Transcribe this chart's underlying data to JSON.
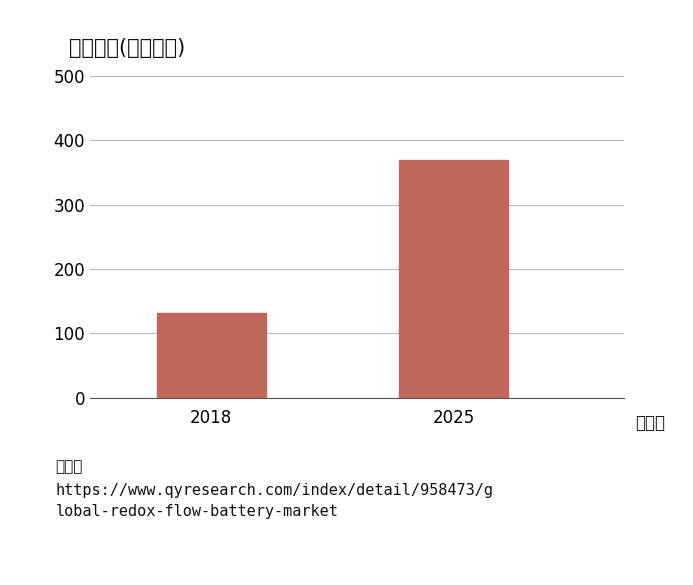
{
  "title": "市場規模(百万ドル)",
  "categories": [
    "2018",
    "2025"
  ],
  "values": [
    132,
    370
  ],
  "bar_color": "#c0675a",
  "bar_width": 0.45,
  "ylim": [
    0,
    500
  ],
  "yticks": [
    0,
    100,
    200,
    300,
    400,
    500
  ],
  "xlabel_suffix": "（年）",
  "background_color": "#ffffff",
  "grid_color": "#bbbbbb",
  "axis_color": "#555555",
  "source_line1": "出典：",
  "source_line2": "https://www.qyresearch.com/index/detail/958473/g",
  "source_line3": "lobal-redox-flow-battery-market",
  "title_fontsize": 15,
  "tick_fontsize": 12,
  "source_fontsize": 11,
  "year_label_fontsize": 12
}
